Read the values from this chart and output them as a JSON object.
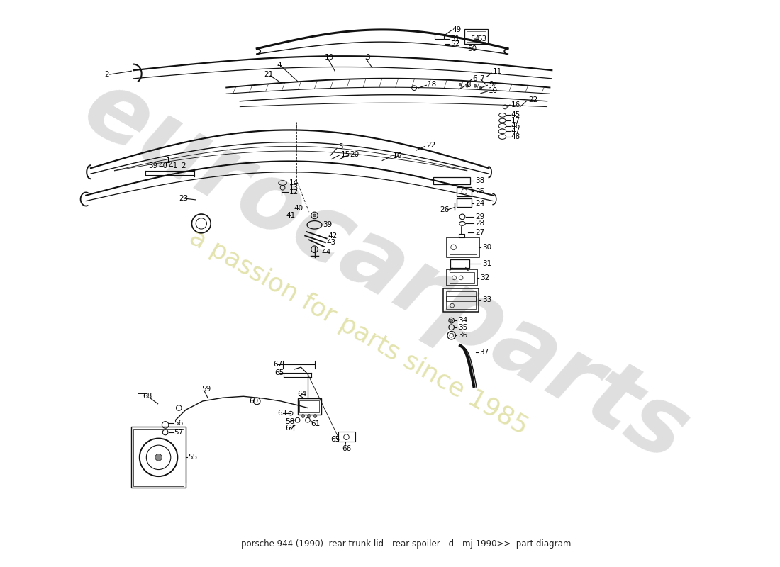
{
  "title": "porsche 944 (1990)  rear trunk lid - rear spoiler - d - mj 1990>>  part diagram",
  "bg_color": "#ffffff",
  "lc": "#111111",
  "fs": 7.5,
  "wm1": "eurocarparts",
  "wm2": "a passion for parts since 1985",
  "fig_w": 11.0,
  "fig_h": 8.0,
  "dpi": 100
}
